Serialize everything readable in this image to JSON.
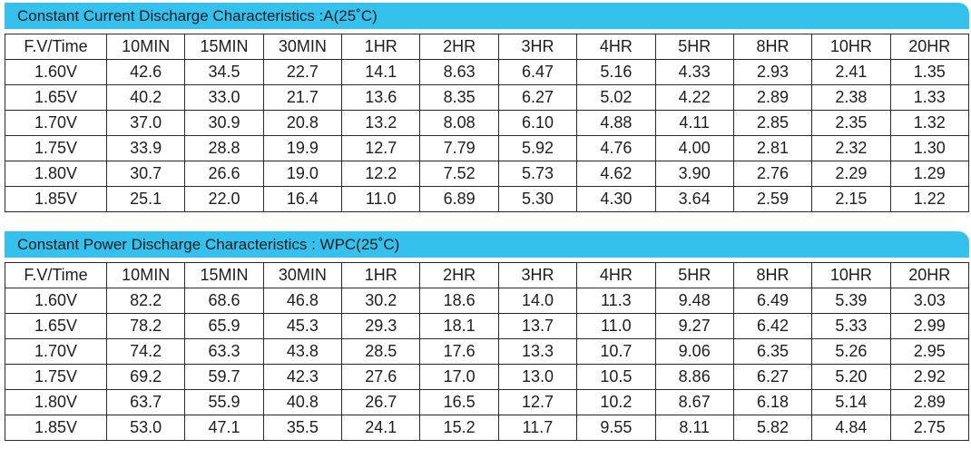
{
  "tables": [
    {
      "title": "Constant Current Discharge Characteristics :A(25˚C)",
      "headers": [
        "F.V/Time",
        "10MIN",
        "15MIN",
        "30MIN",
        "1HR",
        "2HR",
        "3HR",
        "4HR",
        "5HR",
        "8HR",
        "10HR",
        "20HR"
      ],
      "rows": [
        [
          "1.60V",
          "42.6",
          "34.5",
          "22.7",
          "14.1",
          "8.63",
          "6.47",
          "5.16",
          "4.33",
          "2.93",
          "2.41",
          "1.35"
        ],
        [
          "1.65V",
          "40.2",
          "33.0",
          "21.7",
          "13.6",
          "8.35",
          "6.27",
          "5.02",
          "4.22",
          "2.89",
          "2.38",
          "1.33"
        ],
        [
          "1.70V",
          "37.0",
          "30.9",
          "20.8",
          "13.2",
          "8.08",
          "6.10",
          "4.88",
          "4.11",
          "2.85",
          "2.35",
          "1.32"
        ],
        [
          "1.75V",
          "33.9",
          "28.8",
          "19.9",
          "12.7",
          "7.79",
          "5.92",
          "4.76",
          "4.00",
          "2.81",
          "2.32",
          "1.30"
        ],
        [
          "1.80V",
          "30.7",
          "26.6",
          "19.0",
          "12.2",
          "7.52",
          "5.73",
          "4.62",
          "3.90",
          "2.76",
          "2.29",
          "1.29"
        ],
        [
          "1.85V",
          "25.1",
          "22.0",
          "16.4",
          "11.0",
          "6.89",
          "5.30",
          "4.30",
          "3.64",
          "2.59",
          "2.15",
          "1.22"
        ]
      ]
    },
    {
      "title": "Constant Power Discharge Characteristics : WPC(25˚C)",
      "headers": [
        "F.V/Time",
        "10MIN",
        "15MIN",
        "30MIN",
        "1HR",
        "2HR",
        "3HR",
        "4HR",
        "5HR",
        "8HR",
        "10HR",
        "20HR"
      ],
      "rows": [
        [
          "1.60V",
          "82.2",
          "68.6",
          "46.8",
          "30.2",
          "18.6",
          "14.0",
          "11.3",
          "9.48",
          "6.49",
          "5.39",
          "3.03"
        ],
        [
          "1.65V",
          "78.2",
          "65.9",
          "45.3",
          "29.3",
          "18.1",
          "13.7",
          "11.0",
          "9.27",
          "6.42",
          "5.33",
          "2.99"
        ],
        [
          "1.70V",
          "74.2",
          "63.3",
          "43.8",
          "28.5",
          "17.6",
          "13.3",
          "10.7",
          "9.06",
          "6.35",
          "5.26",
          "2.95"
        ],
        [
          "1.75V",
          "69.2",
          "59.7",
          "42.3",
          "27.6",
          "17.0",
          "13.0",
          "10.5",
          "8.86",
          "6.27",
          "5.20",
          "2.92"
        ],
        [
          "1.80V",
          "63.7",
          "55.9",
          "40.8",
          "26.7",
          "16.5",
          "12.7",
          "10.2",
          "8.67",
          "6.18",
          "5.14",
          "2.89"
        ],
        [
          "1.85V",
          "53.0",
          "47.1",
          "35.5",
          "24.1",
          "15.2",
          "11.7",
          "9.55",
          "8.11",
          "5.82",
          "4.84",
          "2.75"
        ]
      ]
    }
  ],
  "colors": {
    "banner": "#34c1ee",
    "border": "#2a2a2a",
    "text": "#1e1e1e"
  }
}
